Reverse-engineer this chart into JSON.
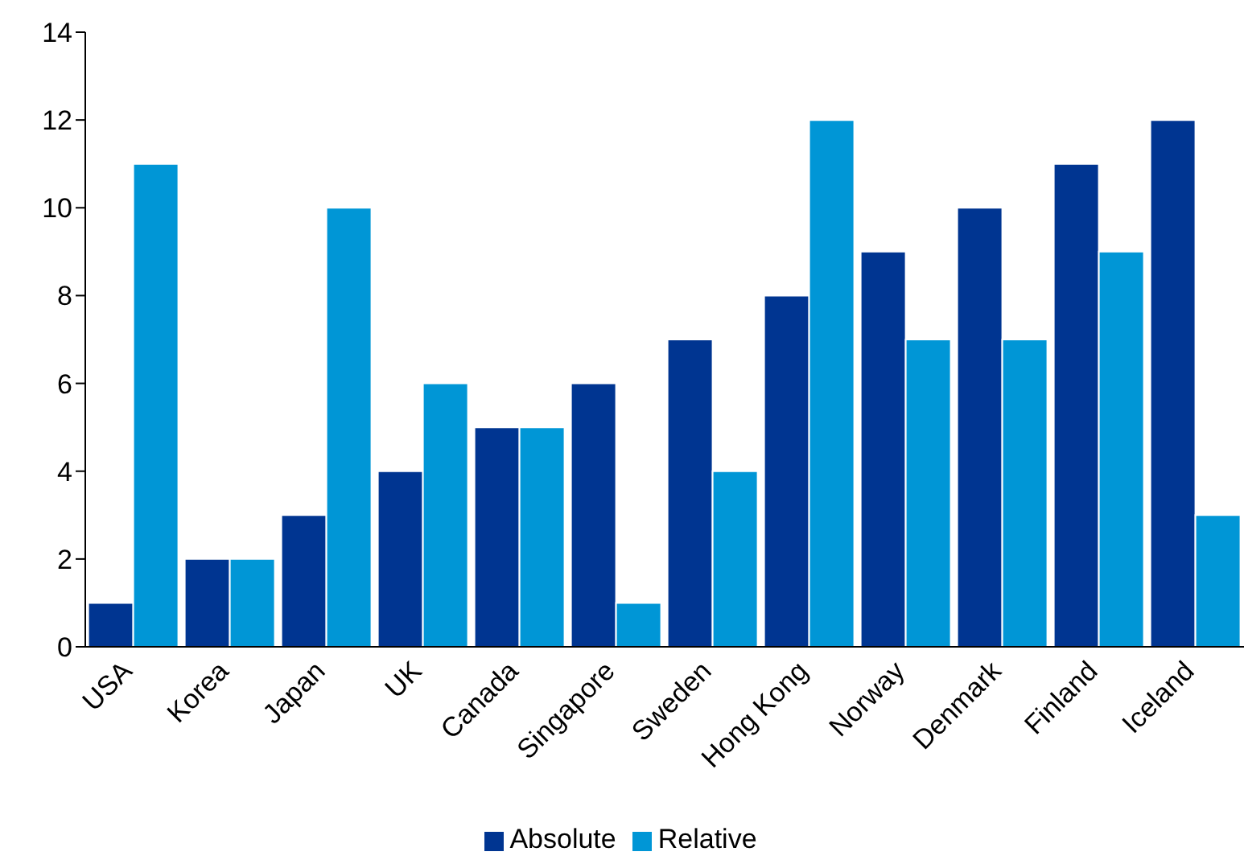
{
  "chart_data": {
    "type": "bar",
    "categories": [
      "USA",
      "Korea",
      "Japan",
      "UK",
      "Canada",
      "Singapore",
      "Sweden",
      "Hong Kong",
      "Norway",
      "Denmark",
      "Finland",
      "Iceland"
    ],
    "series": [
      {
        "name": "Absolute",
        "color": "#003591",
        "values": [
          1,
          2,
          3,
          4,
          5,
          6,
          7,
          8,
          9,
          10,
          11,
          12
        ]
      },
      {
        "name": "Relative",
        "color": "#0096d6",
        "values": [
          11,
          2,
          10,
          6,
          5,
          1,
          4,
          12,
          7,
          7,
          9,
          3
        ]
      }
    ],
    "ylim": [
      0,
      14
    ],
    "yticks": [
      0,
      2,
      4,
      6,
      8,
      10,
      12,
      14
    ],
    "grid": false,
    "legend": "bottom"
  }
}
